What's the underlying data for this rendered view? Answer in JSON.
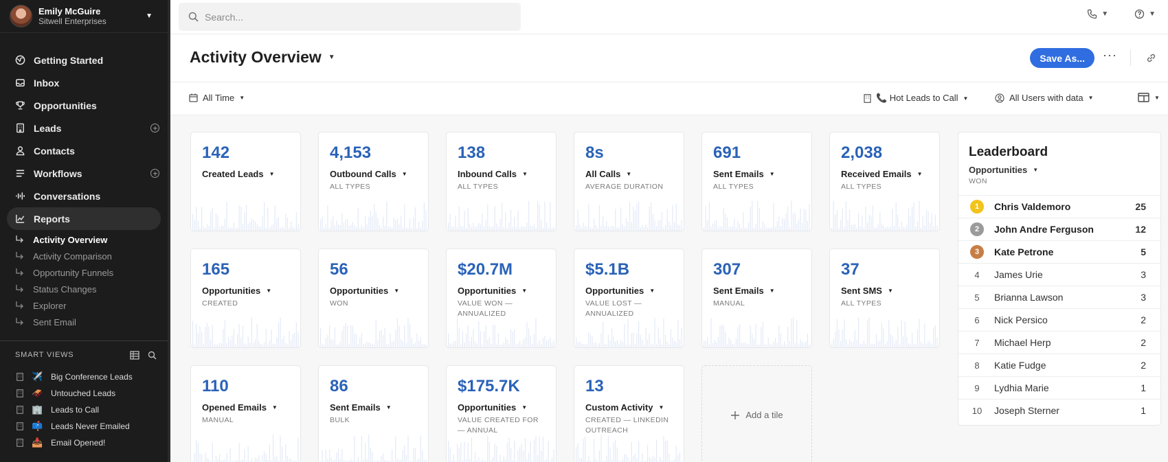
{
  "user": {
    "name": "Emily McGuire",
    "org": "Sitwell Enterprises"
  },
  "nav": [
    {
      "label": "Getting Started",
      "icon": "globe-icon"
    },
    {
      "label": "Inbox",
      "icon": "inbox-icon"
    },
    {
      "label": "Opportunities",
      "icon": "trophy-icon"
    },
    {
      "label": "Leads",
      "icon": "building-icon"
    },
    {
      "label": "Contacts",
      "icon": "person-icon"
    },
    {
      "label": "Workflows",
      "icon": "list-icon"
    },
    {
      "label": "Conversations",
      "icon": "waveform-icon"
    },
    {
      "label": "Reports",
      "icon": "chart-icon"
    }
  ],
  "reports_subnav": [
    "Activity Overview",
    "Activity Comparison",
    "Opportunity Funnels",
    "Status Changes",
    "Explorer",
    "Sent Email"
  ],
  "smart_views": {
    "heading": "SMART VIEWS",
    "items": [
      {
        "emoji": "✈️",
        "label": "Big Conference Leads"
      },
      {
        "emoji": "🛷",
        "label": "Untouched Leads"
      },
      {
        "emoji": "🏢",
        "label": "Leads to Call"
      },
      {
        "emoji": "📫",
        "label": "Leads Never Emailed"
      },
      {
        "emoji": "📥",
        "label": "Email Opened!"
      }
    ]
  },
  "search": {
    "placeholder": "Search..."
  },
  "header": {
    "title": "Activity Overview",
    "save_label": "Save As...",
    "more_label": "···"
  },
  "filters": {
    "time": "All Time",
    "view": "📞 Hot Leads to Call",
    "users": "All Users with data"
  },
  "tiles": [
    {
      "value": "142",
      "label": "Created Leads",
      "sub": ""
    },
    {
      "value": "4,153",
      "label": "Outbound Calls",
      "sub": "ALL TYPES"
    },
    {
      "value": "138",
      "label": "Inbound Calls",
      "sub": "ALL TYPES"
    },
    {
      "value": "8s",
      "label": "All Calls",
      "sub": "AVERAGE DURATION"
    },
    {
      "value": "691",
      "label": "Sent Emails",
      "sub": "ALL TYPES"
    },
    {
      "value": "2,038",
      "label": "Received Emails",
      "sub": "ALL TYPES"
    },
    {
      "value": "165",
      "label": "Opportunities",
      "sub": "CREATED"
    },
    {
      "value": "56",
      "label": "Opportunities",
      "sub": "WON"
    },
    {
      "value": "$20.7M",
      "label": "Opportunities",
      "sub": "VALUE WON — ANNUALIZED"
    },
    {
      "value": "$5.1B",
      "label": "Opportunities",
      "sub": "VALUE LOST — ANNUALIZED"
    },
    {
      "value": "307",
      "label": "Sent Emails",
      "sub": "MANUAL"
    },
    {
      "value": "37",
      "label": "Sent SMS",
      "sub": "ALL TYPES"
    },
    {
      "value": "110",
      "label": "Opened Emails",
      "sub": "MANUAL"
    },
    {
      "value": "86",
      "label": "Sent Emails",
      "sub": "BULK"
    },
    {
      "value": "$175.7K",
      "label": "Opportunities",
      "sub": "VALUE CREATED FOR — ANNUAL"
    },
    {
      "value": "13",
      "label": "Custom Activity",
      "sub": "CREATED — LINKEDIN OUTREACH"
    }
  ],
  "add_tile_label": "Add a tile",
  "leaderboard": {
    "title": "Leaderboard",
    "metric": "Opportunities",
    "metric_sub": "WON",
    "medal_colors": [
      "#f2c31a",
      "#9b9b9b",
      "#c77e45"
    ],
    "rows": [
      {
        "rank": "1",
        "name": "Chris Valdemoro",
        "count": "25"
      },
      {
        "rank": "2",
        "name": "John Andre Ferguson",
        "count": "12"
      },
      {
        "rank": "3",
        "name": "Kate Petrone",
        "count": "5"
      },
      {
        "rank": "4",
        "name": "James Urie",
        "count": "3"
      },
      {
        "rank": "5",
        "name": "Brianna Lawson",
        "count": "3"
      },
      {
        "rank": "6",
        "name": "Nick Persico",
        "count": "2"
      },
      {
        "rank": "7",
        "name": "Michael Herp",
        "count": "2"
      },
      {
        "rank": "8",
        "name": "Katie Fudge",
        "count": "2"
      },
      {
        "rank": "9",
        "name": "Lydhia Marie",
        "count": "1"
      },
      {
        "rank": "10",
        "name": "Joseph Sterner",
        "count": "1"
      }
    ]
  },
  "colors": {
    "accent": "#2f6de0",
    "metric_blue": "#2a62b8",
    "sidebar_bg": "#1c1c1c"
  }
}
